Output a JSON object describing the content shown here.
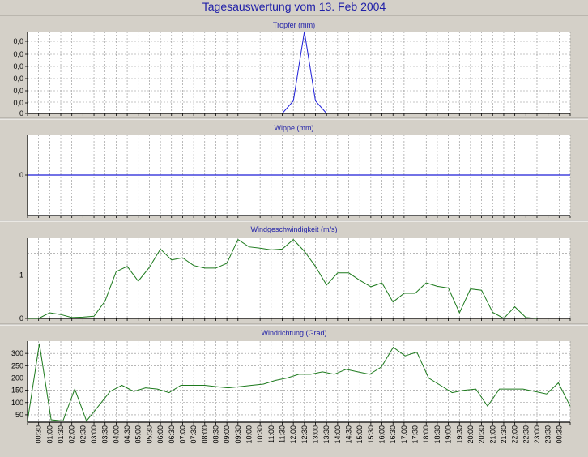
{
  "page": {
    "title": "Tagesauswertung vom 13. Feb 2004"
  },
  "colors": {
    "background": "#d4d0c8",
    "plot_background": "#ffffff",
    "title_text": "#1f1fa8",
    "grid": "#8c8c8c",
    "series_blue": "#1f1fd8",
    "series_green": "#1d7a1d"
  },
  "x_time_labels": [
    "00:30",
    "01:00",
    "01:30",
    "02:00",
    "02:30",
    "03:00",
    "03:30",
    "04:00",
    "04:30",
    "05:00",
    "05:30",
    "06:00",
    "06:30",
    "07:00",
    "07:30",
    "08:00",
    "08:30",
    "09:00",
    "09:30",
    "10:00",
    "10:30",
    "11:00",
    "11:30",
    "12:00",
    "12:30",
    "13:00",
    "13:30",
    "14:00",
    "14:30",
    "15:00",
    "15:30",
    "16:00",
    "16:30",
    "17:00",
    "17:30",
    "18:00",
    "18:30",
    "19:00",
    "19:30",
    "20:00",
    "20:30",
    "21:00",
    "21:30",
    "22:00",
    "22:30",
    "23:00",
    "23:30",
    "00:30"
  ],
  "chart_data": [
    {
      "type": "line",
      "title": "Tropfer (mm)",
      "y_tick_labels": [
        "0,0",
        "0,0",
        "0,0",
        "0,0",
        "0,0",
        "0,0",
        "0"
      ],
      "ylim": [
        0,
        6.5
      ],
      "grid": true,
      "series": [
        {
          "color": "#1f1fd8",
          "values": [
            0,
            0,
            0,
            0,
            0,
            0,
            0,
            0,
            0,
            0,
            0,
            0,
            0,
            0,
            0,
            0,
            0,
            0,
            0,
            0,
            0,
            0,
            0,
            0,
            1,
            6.5,
            1,
            0,
            0,
            0,
            0,
            0,
            0,
            0,
            0,
            0,
            0,
            0,
            0,
            0,
            0,
            0,
            0,
            0,
            0,
            0,
            0,
            0,
            0,
            0
          ],
          "x_count": 50,
          "partial_until": 27
        }
      ]
    },
    {
      "type": "line",
      "title": "Wippe (mm)",
      "y_tick_labels": [
        "0"
      ],
      "y_tick_values": [
        0
      ],
      "ylim": [
        -1,
        1
      ],
      "grid": true,
      "series": [
        {
          "color": "#1f1fd8",
          "values": [
            0,
            0,
            0,
            0,
            0,
            0,
            0,
            0,
            0,
            0,
            0,
            0,
            0,
            0,
            0,
            0,
            0,
            0,
            0,
            0,
            0,
            0,
            0,
            0,
            0,
            0,
            0,
            0,
            0,
            0,
            0,
            0,
            0,
            0,
            0,
            0,
            0,
            0,
            0,
            0,
            0,
            0,
            0,
            0,
            0,
            0,
            0,
            0,
            0,
            0
          ]
        }
      ]
    },
    {
      "type": "line",
      "title": "Windgeschwindigkeit (m/s)",
      "y_tick_labels": [
        "0",
        "1"
      ],
      "y_tick_values": [
        0,
        1
      ],
      "ylim": [
        0,
        1.85
      ],
      "grid": true,
      "series": [
        {
          "color": "#1d7a1d",
          "values": [
            0,
            0,
            0.13,
            0.09,
            0.02,
            0.03,
            0.05,
            0.4,
            1.08,
            1.2,
            0.86,
            1.18,
            1.6,
            1.35,
            1.4,
            1.22,
            1.16,
            1.16,
            1.27,
            1.82,
            1.65,
            1.62,
            1.58,
            1.6,
            1.82,
            1.55,
            1.2,
            0.77,
            1.05,
            1.05,
            0.88,
            0.73,
            0.82,
            0.38,
            0.58,
            0.58,
            0.82,
            0.74,
            0.7,
            0.13,
            0.68,
            0.65,
            0.14,
            0,
            0.27,
            0.02,
            0,
            0,
            0,
            0
          ],
          "x_count": 50,
          "partial_until": 46
        }
      ]
    },
    {
      "type": "line",
      "title": "Windrichtung (Grad)",
      "y_tick_labels": [
        "50",
        "100",
        "150",
        "200",
        "250",
        "300"
      ],
      "y_tick_values": [
        50,
        100,
        150,
        200,
        250,
        300
      ],
      "ylim": [
        20,
        350
      ],
      "grid": true,
      "series": [
        {
          "color": "#1d7a1d",
          "values": [
            25,
            340,
            30,
            25,
            155,
            25,
            85,
            145,
            170,
            145,
            160,
            155,
            140,
            170,
            170,
            170,
            165,
            160,
            165,
            170,
            175,
            190,
            200,
            215,
            215,
            225,
            215,
            235,
            225,
            215,
            245,
            325,
            290,
            305,
            200,
            170,
            140,
            150,
            155,
            85,
            155,
            155,
            155,
            145,
            135,
            180,
            85
          ]
        }
      ]
    }
  ]
}
